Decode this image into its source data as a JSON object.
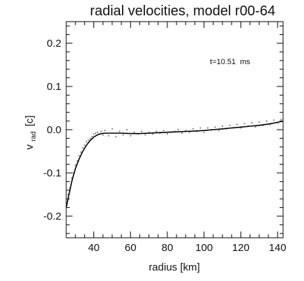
{
  "chart_data": {
    "type": "scatter",
    "title": "radial velocities, model r00-64",
    "xlabel": "radius [km]",
    "ylabel_main": "v",
    "ylabel_sub": "rad",
    "ylabel_unit": "[c]",
    "annotation": "t=10.51  ms",
    "xlim": [
      25,
      143
    ],
    "ylim": [
      -0.25,
      0.25
    ],
    "xticks": [
      40,
      60,
      80,
      100,
      120,
      140
    ],
    "yticks": [
      0.2,
      0.1,
      0.0,
      -0.1,
      -0.2
    ],
    "ytick_labels": [
      "0.2",
      "0.1",
      "0.0",
      "-0.1",
      "-0.2"
    ],
    "grid": false,
    "series": [
      {
        "style": "line",
        "color": "#000000",
        "x": [
          25,
          26,
          27,
          28,
          29,
          30,
          32,
          34,
          36,
          38,
          40,
          42,
          44,
          46,
          48,
          50,
          55,
          60,
          65,
          70,
          75,
          80,
          85,
          90,
          95,
          100,
          105,
          110,
          115,
          120,
          125,
          130,
          135,
          140,
          143
        ],
        "y": [
          -0.18,
          -0.16,
          -0.14,
          -0.12,
          -0.105,
          -0.09,
          -0.068,
          -0.05,
          -0.036,
          -0.025,
          -0.017,
          -0.012,
          -0.009,
          -0.008,
          -0.008,
          -0.008,
          -0.008,
          -0.009,
          -0.009,
          -0.008,
          -0.007,
          -0.006,
          -0.005,
          -0.004,
          -0.003,
          -0.002,
          0.0,
          0.002,
          0.004,
          0.006,
          0.008,
          0.01,
          0.013,
          0.017,
          0.02
        ]
      },
      {
        "style": "scatter",
        "color": "#888888",
        "x": [
          26,
          27,
          28,
          29,
          30,
          31,
          32,
          33,
          34,
          35,
          36,
          37,
          38,
          39,
          40,
          41,
          42,
          43,
          44,
          45,
          46,
          48,
          50,
          52,
          54,
          56,
          58,
          60,
          62,
          64,
          66,
          68,
          70,
          72,
          74,
          76,
          78,
          80,
          82,
          84,
          86,
          88,
          90,
          92,
          94,
          96,
          98,
          100,
          102,
          104,
          106,
          108,
          110,
          112,
          114,
          116,
          118,
          120,
          122,
          124,
          126,
          128,
          130,
          132,
          134,
          136,
          138,
          140,
          142
        ],
        "y": [
          -0.15,
          -0.135,
          -0.112,
          -0.1,
          -0.082,
          -0.072,
          -0.06,
          -0.052,
          -0.042,
          -0.036,
          -0.028,
          -0.024,
          -0.02,
          -0.016,
          -0.01,
          -0.008,
          -0.006,
          -0.01,
          -0.004,
          -0.012,
          -0.002,
          -0.014,
          0.002,
          -0.016,
          -0.004,
          -0.012,
          0.0,
          -0.014,
          -0.006,
          -0.01,
          -0.004,
          -0.012,
          -0.006,
          -0.01,
          -0.004,
          -0.008,
          -0.002,
          -0.01,
          -0.006,
          -0.004,
          0.0,
          -0.008,
          -0.002,
          -0.006,
          0.002,
          -0.004,
          0.004,
          -0.006,
          0.004,
          0.0,
          0.006,
          -0.002,
          0.008,
          0.002,
          0.01,
          0.004,
          0.012,
          0.004,
          0.014,
          0.008,
          0.016,
          0.006,
          0.018,
          0.01,
          0.02,
          0.012,
          0.022,
          0.016,
          0.024
        ]
      }
    ]
  }
}
